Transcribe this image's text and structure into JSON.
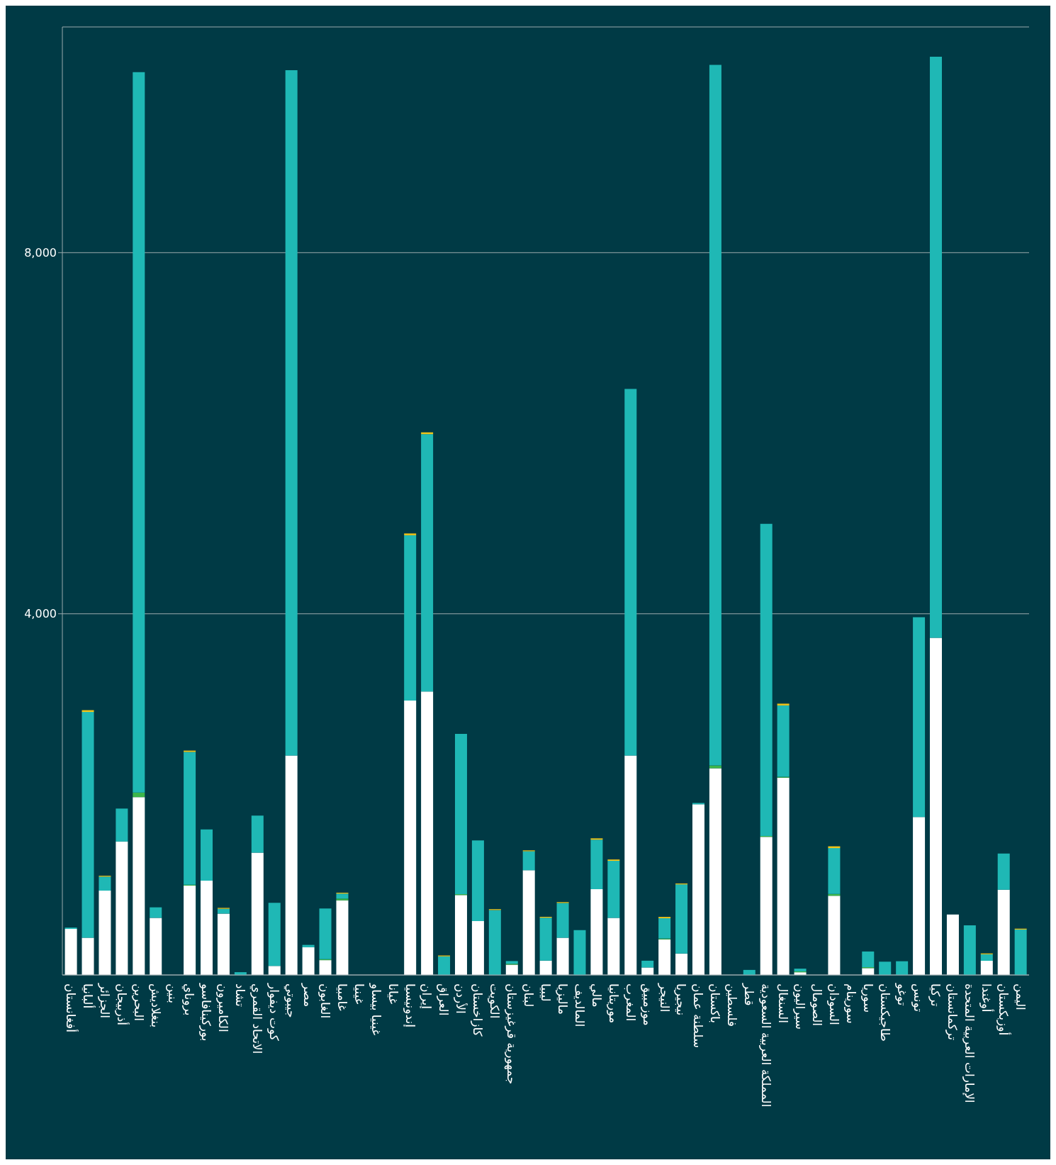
{
  "chart_data": {
    "type": "bar",
    "stacked": true,
    "categories": [
      "أفغانستان",
      "ألبانيا",
      "الجزائر",
      "أذربيجان",
      "البحرين",
      "بنغلاديش",
      "بنين",
      "بروناي",
      "بوركينافاسو",
      "الكاميرون",
      "تشاد",
      "الاتحاد القمري",
      "كوت ديفوار",
      "جيبوتي",
      "مصر",
      "الغابون",
      "غامبيا",
      "غينيا",
      "غينيا بيساو",
      "غيانا",
      "إندونيسيا",
      "إيران",
      "العراق",
      "الأردن",
      "كازاخستان",
      "الكويت",
      "جمهورية قرغيزستان",
      "لبنان",
      "ليبيا",
      "ماليزيا",
      "المالديف",
      "مالي",
      "موريتانيا",
      "المغرب",
      "موزمبيق",
      "النيجر",
      "نيجيريا",
      "سلطنة عمان",
      "باكستان",
      "فلسطين",
      "قطر",
      "المملكة العربية السعودية",
      "السنغال",
      "سيراليون",
      "الصومال",
      "السودان",
      "سورينام",
      "سوريا",
      "طاجيكستان",
      "توغو",
      "تونس",
      "تركيا",
      "تركمانستان",
      "الإمارات العربية المتحدة",
      "أوغندا",
      "أوزبكستان",
      "اليمن"
    ],
    "series": [
      {
        "color": "#ffffff",
        "values": [
          510,
          413,
          934,
          1478,
          1970,
          633,
          null,
          990,
          1044,
          680,
          null,
          1355,
          100,
          2430,
          307,
          164,
          826,
          null,
          null,
          null,
          3040,
          3140,
          null,
          885,
          597,
          null,
          114,
          1160,
          159,
          412,
          null,
          950,
          632,
          2430,
          83,
          394,
          237,
          1890,
          2290,
          null,
          null,
          1530,
          2185,
          30,
          null,
          877,
          null,
          76,
          null,
          null,
          1750,
          3735,
          670,
          null,
          157,
          944,
          null
        ]
      },
      {
        "color": "#3cb54a",
        "values": [
          null,
          null,
          null,
          null,
          50,
          null,
          null,
          10,
          null,
          null,
          null,
          null,
          null,
          null,
          null,
          10,
          20,
          null,
          null,
          null,
          null,
          null,
          null,
          10,
          null,
          null,
          10,
          null,
          null,
          null,
          null,
          null,
          null,
          null,
          null,
          10,
          null,
          null,
          30,
          null,
          null,
          10,
          10,
          10,
          null,
          20,
          null,
          10,
          null,
          null,
          null,
          null,
          null,
          null,
          null,
          null,
          null
        ]
      },
      {
        "color": "#1fb8b5",
        "values": [
          15,
          2500,
          155,
          365,
          7980,
          116,
          null,
          1470,
          567,
          53,
          31,
          410,
          700,
          7590,
          26,
          562,
          55,
          null,
          null,
          null,
          1830,
          2850,
          206,
          1775,
          893,
          719,
          30,
          210,
          475,
          385,
          497,
          548,
          632,
          4060,
          75,
          224,
          766,
          15,
          7760,
          null,
          56,
          3456,
          790,
          30,
          null,
          508,
          null,
          174,
          147,
          152,
          2212,
          6435,
          null,
          549,
          72,
          400,
          503
        ]
      },
      {
        "color": "#f0c419",
        "values": [
          null,
          20,
          10,
          null,
          null,
          null,
          null,
          15,
          null,
          10,
          null,
          null,
          null,
          null,
          null,
          null,
          10,
          null,
          null,
          null,
          20,
          20,
          10,
          null,
          null,
          10,
          null,
          10,
          10,
          10,
          null,
          15,
          15,
          null,
          null,
          15,
          10,
          null,
          null,
          null,
          null,
          null,
          20,
          null,
          null,
          20,
          null,
          null,
          null,
          null,
          null,
          null,
          null,
          null,
          10,
          null,
          10
        ]
      }
    ],
    "ylim": [
      0,
      10500
    ],
    "yticks": [
      {
        "value": 4000,
        "label": "4,000"
      },
      {
        "value": 8000,
        "label": "8,000"
      }
    ],
    "grid": "y"
  }
}
